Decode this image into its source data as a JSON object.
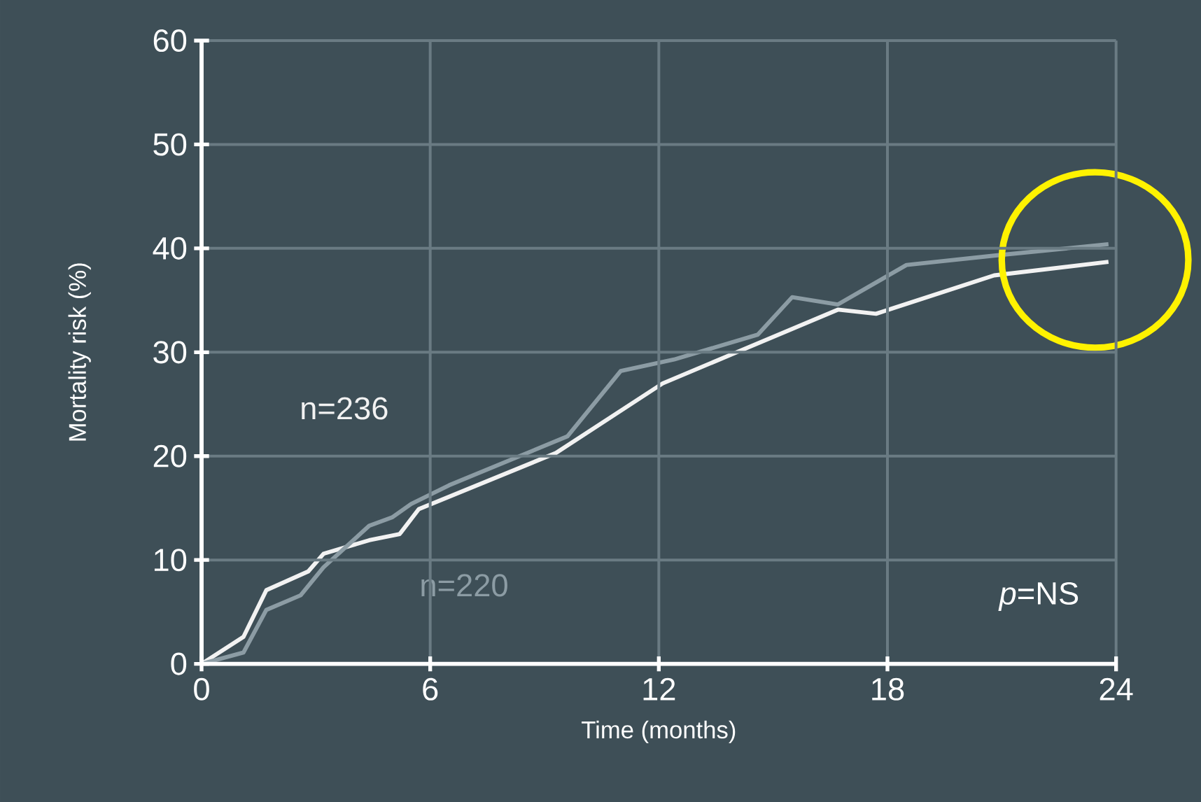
{
  "chart_data": {
    "type": "line",
    "xlabel": "Time (months)",
    "ylabel": "Mortality risk (%)",
    "xlim": [
      0,
      24
    ],
    "ylim": [
      0,
      60
    ],
    "xticks": [
      0,
      6,
      12,
      18,
      24
    ],
    "yticks": [
      0,
      10,
      20,
      30,
      40,
      50,
      60
    ],
    "grid": true,
    "legend": false,
    "marker": "none",
    "line_style": "solid",
    "annotations": [
      "*p*=NS"
    ],
    "series": [
      {
        "name": "n=236",
        "color": "#f2f2f2",
        "x": [
          0,
          1.1,
          1.7,
          2.8,
          3.2,
          4.4,
          5.2,
          5.7,
          9.3,
          12.1,
          16.7,
          17.7,
          20.8,
          23.8
        ],
        "values": [
          0,
          2.6,
          7.1,
          8.9,
          10.6,
          11.9,
          12.5,
          14.9,
          20.3,
          27.0,
          34.1,
          33.7,
          37.4,
          38.7
        ]
      },
      {
        "name": "n=220",
        "color": "#8c9ca4",
        "x": [
          0,
          1.1,
          1.7,
          2.6,
          3.2,
          4.4,
          5.0,
          5.5,
          6.5,
          9.6,
          11.0,
          12.4,
          14.6,
          15.5,
          16.7,
          18.5,
          20.8,
          23.8
        ],
        "values": [
          0,
          1.1,
          5.2,
          6.6,
          9.3,
          13.3,
          14.1,
          15.4,
          17.2,
          21.9,
          28.2,
          29.3,
          31.7,
          35.3,
          34.6,
          38.4,
          39.3,
          40.4
        ]
      }
    ]
  }
}
